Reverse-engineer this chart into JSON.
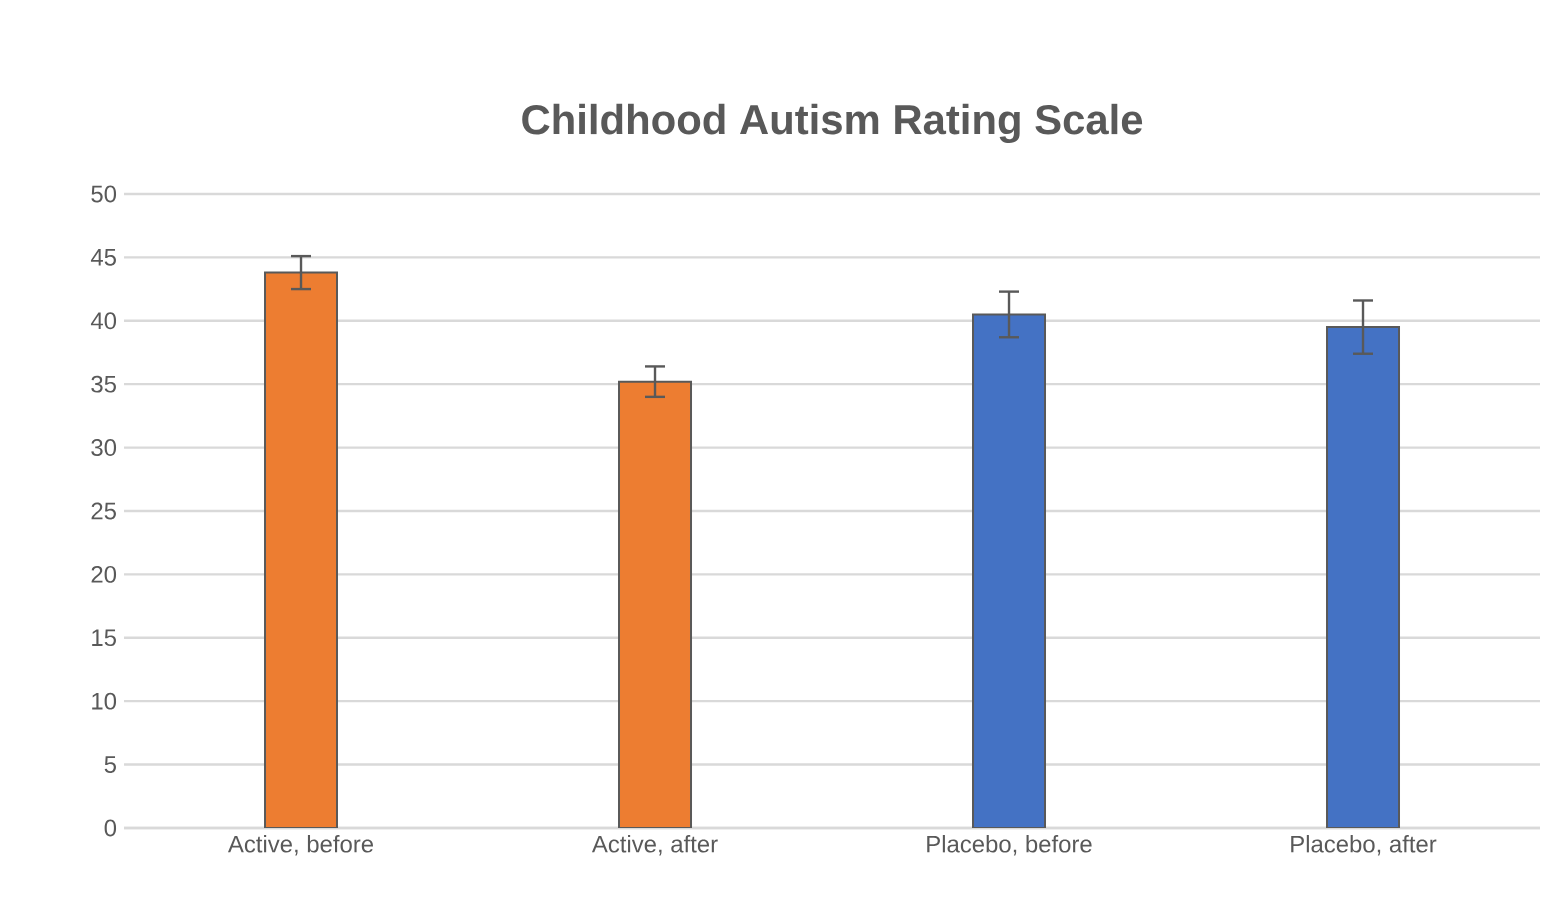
{
  "chart_data": {
    "type": "bar",
    "title": "Childhood Autism Rating Scale",
    "categories": [
      "Active, before",
      "Active, after",
      "Placebo, before",
      "Placebo, after"
    ],
    "values": [
      43.8,
      35.2,
      40.5,
      39.5
    ],
    "errors": [
      1.3,
      1.2,
      1.8,
      2.1
    ],
    "colors": [
      "#ed7d31",
      "#ed7d31",
      "#4472c4",
      "#4472c4"
    ],
    "ylim": [
      0,
      50
    ],
    "yticks": [
      0,
      5,
      10,
      15,
      20,
      25,
      30,
      35,
      40,
      45,
      50
    ],
    "grid": "y"
  }
}
